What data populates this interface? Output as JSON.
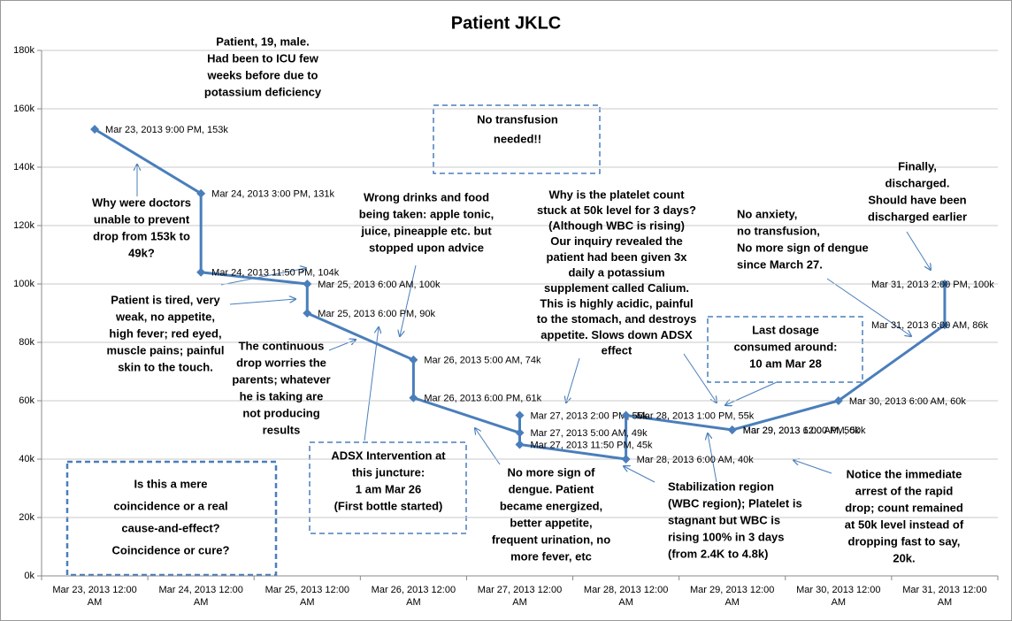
{
  "chart_data": {
    "type": "line",
    "title": "Patient JKLC",
    "categories": [
      "Mar 23, 2013 12:00 AM",
      "Mar 24, 2013 12:00 AM",
      "Mar 25, 2013 12:00 AM",
      "Mar 26, 2013 12:00 AM",
      "Mar 27, 2013 12:00 AM",
      "Mar 28, 2013 12:00 AM",
      "Mar 29, 2013 12:00 AM",
      "Mar 30, 2013 12:00 AM",
      "Mar 31, 2013 12:00 AM"
    ],
    "x": [
      "Mar 23, 2013 9:00 PM",
      "Mar 24, 2013 3:00 PM",
      "Mar 24, 2013 11:50 PM",
      "Mar 25, 2013 6:00 AM",
      "Mar 25, 2013 6:00 PM",
      "Mar 26, 2013 5:00 AM",
      "Mar 26, 2013 6:00 PM",
      "Mar 27, 2013 5:00 AM",
      "Mar 27, 2013 2:00 PM",
      "Mar 27, 2013 11:50 PM",
      "Mar 28, 2013 6:00 AM",
      "Mar 28, 2013 1:00 PM",
      "Mar 29, 2013 6:00 AM",
      "Mar 29, 2013 12:00 PM",
      "Mar 30, 2013 6:00 AM",
      "Mar 31, 2013 6:00 AM",
      "Mar 31, 2013 2:00 PM"
    ],
    "values": [
      153000,
      131000,
      104000,
      100000,
      90000,
      74000,
      61000,
      49000,
      55000,
      45000,
      40000,
      55000,
      50000,
      50000,
      60000,
      86000,
      100000
    ],
    "value_labels": [
      "Mar 23, 2013 9:00 PM, 153k",
      "Mar 24, 2013 3:00 PM, 131k",
      "Mar 24, 2013 11:50 PM, 104k",
      "Mar 25, 2013 6:00 AM, 100k",
      "Mar 25, 2013 6:00 PM, 90k",
      "Mar 26, 2013 5:00 AM, 74k",
      "Mar 26, 2013 6:00 PM, 61k",
      "Mar 27, 2013 5:00 AM, 49k",
      "Mar 27, 2013 2:00 PM, 55k",
      "Mar 27, 2013 11:50 PM, 45k",
      "Mar 28, 2013 6:00 AM, 40k",
      "Mar 28, 2013 1:00 PM, 55k",
      "Mar 29, 2013 6:00 AM, 50k",
      "Mar 29, 2013 12:00 PM, 50k",
      "Mar 30, 2013 6:00 AM, 60k",
      "Mar 31, 2013 6:00 AM, 86k",
      "Mar 31, 2013 2:00 PM, 100k"
    ],
    "color": "#4a7ebb",
    "ylim": [
      0,
      180000
    ],
    "yticks": [
      {
        "value": 0,
        "label": "0k"
      },
      {
        "value": 20000,
        "label": "20k"
      },
      {
        "value": 40000,
        "label": "40k"
      },
      {
        "value": 60000,
        "label": "60k"
      },
      {
        "value": 80000,
        "label": "80k"
      },
      {
        "value": 100000,
        "label": "100k"
      },
      {
        "value": 120000,
        "label": "120k"
      },
      {
        "value": 140000,
        "label": "140k"
      },
      {
        "value": 160000,
        "label": "160k"
      },
      {
        "value": 180000,
        "label": "180k"
      }
    ],
    "grid": true,
    "annotations": [
      [
        "Patient, 19, male.",
        "Had been to ICU few",
        "weeks before due to",
        "potassium deficiency"
      ],
      [
        "No transfusion",
        "needed!!"
      ],
      [
        "Why were doctors",
        "unable to prevent",
        "drop from 153k to",
        "49k?"
      ],
      [
        "Wrong drinks and food",
        "being taken: apple tonic,",
        "juice, pineapple etc. but",
        "stopped upon advice"
      ],
      [
        "Why is the platelet count",
        "stuck at 50k level for 3 days?",
        "(Although WBC is rising)",
        "Our inquiry revealed the",
        "patient had been given 3x",
        "daily a potassium",
        "supplement called Calium.",
        "This is highly acidic, painful",
        "to the stomach, and destroys",
        "appetite. Slows down ADSX",
        "effect"
      ],
      [
        "No anxiety,",
        "no transfusion,",
        "No more sign of dengue",
        "since March 27."
      ],
      [
        "Finally,",
        "discharged.",
        "Should have been",
        "discharged earlier"
      ],
      [
        "Patient is tired, very",
        "weak, no appetite,",
        "high fever; red eyed,",
        "muscle pains; painful",
        "skin to the touch."
      ],
      [
        "The continuous",
        "drop worries the",
        "parents; whatever",
        "he is taking are",
        "not producing",
        "results"
      ],
      [
        "Last dosage",
        "consumed around:",
        "10 am Mar 28"
      ],
      [
        "ADSX Intervention at",
        "this juncture:",
        "1 am Mar 26",
        "(First bottle started)"
      ],
      [
        "No more sign of",
        "dengue. Patient",
        "became energized,",
        "better appetite,",
        "frequent urination, no",
        "more fever, etc"
      ],
      [
        "Stabilization region",
        "(WBC region); Platelet is",
        "stagnant but WBC is",
        "rising 100% in 3 days",
        "(from 2.4K to 4.8k)"
      ],
      [
        "Notice the immediate",
        "arrest of the rapid",
        "drop;  count remained",
        "at 50k level  instead of",
        "dropping fast to say,",
        "20k."
      ],
      [
        "Is this a mere",
        "coincidence or a real",
        "cause-and-effect?",
        "Coincidence or cure?"
      ]
    ]
  }
}
